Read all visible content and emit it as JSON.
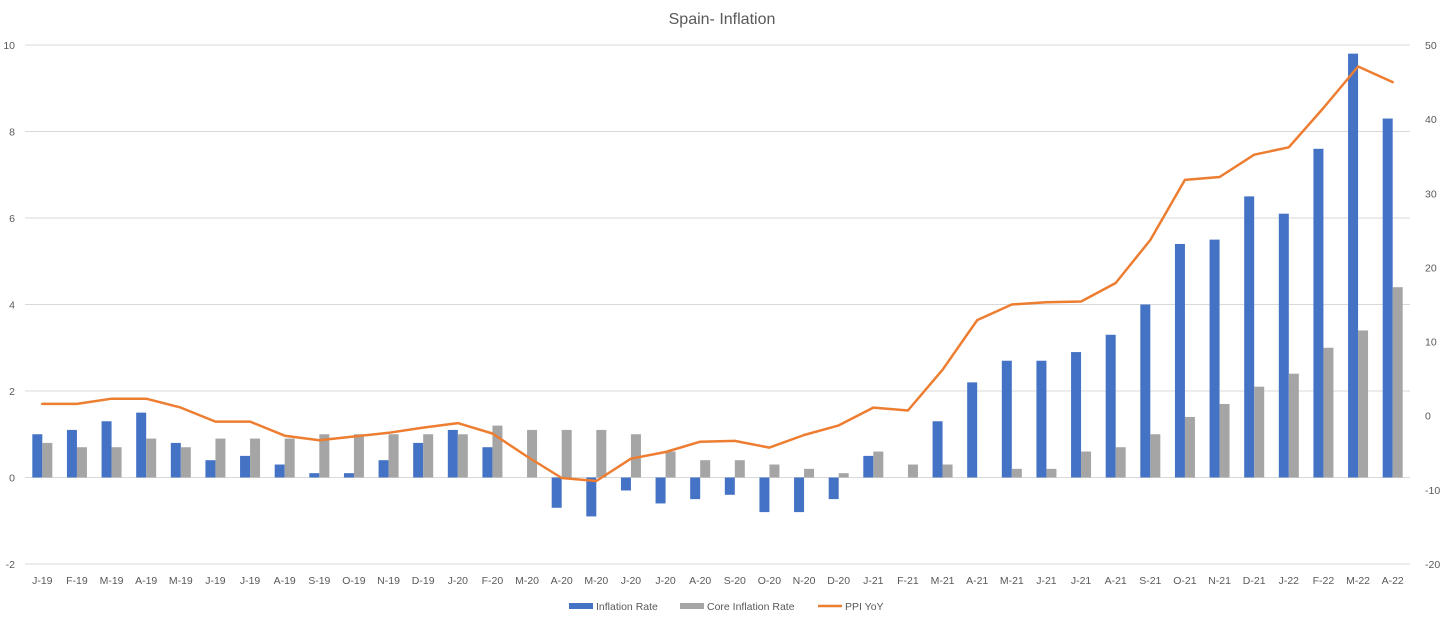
{
  "chart_data": {
    "type": "bar",
    "title": "Spain- Inflation",
    "categories": [
      "J-19",
      "F-19",
      "M-19",
      "A-19",
      "M-19",
      "J-19",
      "J-19",
      "A-19",
      "S-19",
      "O-19",
      "N-19",
      "D-19",
      "J-20",
      "F-20",
      "M-20",
      "A-20",
      "M-20",
      "J-20",
      "J-20",
      "A-20",
      "S-20",
      "O-20",
      "N-20",
      "D-20",
      "J-21",
      "F-21",
      "M-21",
      "A-21",
      "M-21",
      "J-21",
      "J-21",
      "A-21",
      "S-21",
      "O-21",
      "N-21",
      "D-21",
      "J-22",
      "F-22",
      "M-22",
      "A-22"
    ],
    "series": [
      {
        "name": "Inflation Rate",
        "type": "bar",
        "axis": "left",
        "color": "#4472c4",
        "values": [
          1.0,
          1.1,
          1.3,
          1.5,
          0.8,
          0.4,
          0.5,
          0.3,
          0.1,
          0.1,
          0.4,
          0.8,
          1.1,
          0.7,
          0.0,
          -0.7,
          -0.9,
          -0.3,
          -0.6,
          -0.5,
          -0.4,
          -0.8,
          -0.8,
          -0.5,
          0.5,
          0.0,
          1.3,
          2.2,
          2.7,
          2.7,
          2.9,
          3.3,
          4.0,
          5.4,
          5.5,
          6.5,
          6.1,
          7.6,
          9.8,
          8.3
        ]
      },
      {
        "name": "Core Inflation Rate",
        "type": "bar",
        "axis": "left",
        "color": "#a5a5a5",
        "values": [
          0.8,
          0.7,
          0.7,
          0.9,
          0.7,
          0.9,
          0.9,
          0.9,
          1.0,
          1.0,
          1.0,
          1.0,
          1.0,
          1.2,
          1.1,
          1.1,
          1.1,
          1.0,
          0.6,
          0.4,
          0.4,
          0.3,
          0.2,
          0.1,
          0.6,
          0.3,
          0.3,
          0.0,
          0.2,
          0.2,
          0.6,
          0.7,
          1.0,
          1.4,
          1.7,
          2.1,
          2.4,
          3.0,
          3.4,
          4.4
        ]
      },
      {
        "name": "PPI YoY",
        "type": "line",
        "axis": "right",
        "color": "#ed7d31",
        "values": [
          1.6,
          1.6,
          2.3,
          2.3,
          1.1,
          -0.8,
          -0.8,
          -2.7,
          -3.3,
          -2.8,
          -2.3,
          -1.6,
          -1.0,
          -2.4,
          -5.5,
          -8.4,
          -8.8,
          -5.8,
          -4.9,
          -3.5,
          -3.4,
          -4.3,
          -2.6,
          -1.3,
          1.1,
          0.7,
          6.2,
          12.9,
          15.0,
          15.3,
          15.4,
          17.9,
          23.7,
          31.8,
          32.2,
          35.2,
          36.2,
          41.5,
          47.1,
          45.0
        ]
      }
    ],
    "yleft": {
      "min": -2,
      "max": 10,
      "step": 2,
      "ticks": [
        "-2",
        "0",
        "2",
        "4",
        "6",
        "8",
        "10"
      ]
    },
    "yright": {
      "min": -20,
      "max": 50,
      "step": 10,
      "ticks": [
        "-20",
        "-10",
        "0",
        "10",
        "20",
        "30",
        "40",
        "50"
      ]
    },
    "grid": true,
    "legend_position": "bottom"
  }
}
